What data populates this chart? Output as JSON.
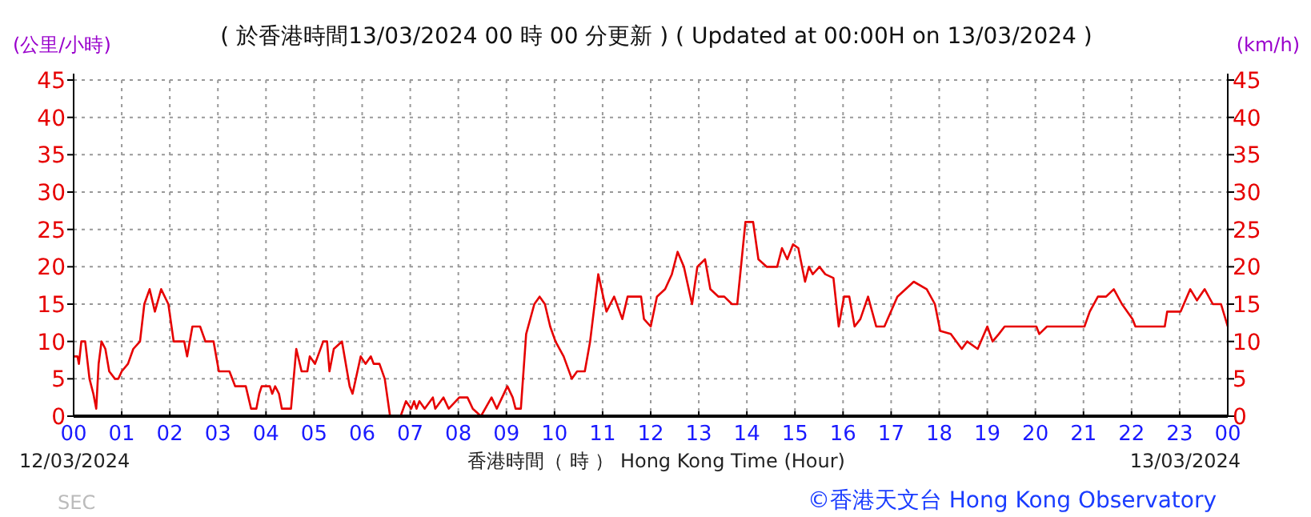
{
  "chart_data": {
    "type": "line",
    "title": "( 於香港時間13/03/2024 00 時 00 分更新 ) ( Updated at 00:00H on 13/03/2024 )",
    "ylabel": "(公里/小時)",
    "y2label": "(km/h)",
    "xlabel": "香港時間（ 時 ） Hong Kong Time (Hour)",
    "annotations": [
      "12/03/2024",
      "13/03/2024",
      "SEC",
      "©香港天文台 Hong Kong Observatory"
    ],
    "x": [
      0,
      0.08,
      0.11,
      0.16,
      0.24,
      0.33,
      0.41,
      0.47,
      0.52,
      0.58,
      0.66,
      0.74,
      0.86,
      0.93,
      1.0,
      1.13,
      1.24,
      1.38,
      1.47,
      1.58,
      1.69,
      1.82,
      1.97,
      2.08,
      2.3,
      2.36,
      2.47,
      2.63,
      2.74,
      2.91,
      3.02,
      3.24,
      3.36,
      3.58,
      3.69,
      3.8,
      3.86,
      3.91,
      4.08,
      4.13,
      4.19,
      4.27,
      4.33,
      4.52,
      4.63,
      4.74,
      4.86,
      4.91,
      5.02,
      5.19,
      5.27,
      5.32,
      5.41,
      5.58,
      5.74,
      5.8,
      5.97,
      6.07,
      6.18,
      6.24,
      6.36,
      6.47,
      6.58,
      6.8,
      6.91,
      7.02,
      7.08,
      7.13,
      7.19,
      7.3,
      7.47,
      7.52,
      7.69,
      7.8,
      8.02,
      8.19,
      8.3,
      8.47,
      8.69,
      8.8,
      8.91,
      9.02,
      9.13,
      9.19,
      9.3,
      9.41,
      9.58,
      9.69,
      9.8,
      9.91,
      10.02,
      10.19,
      10.36,
      10.47,
      10.63,
      10.74,
      10.91,
      11.08,
      11.24,
      11.41,
      11.52,
      11.8,
      11.86,
      12.0,
      12.13,
      12.3,
      12.44,
      12.56,
      12.69,
      12.86,
      12.97,
      13.13,
      13.24,
      13.41,
      13.53,
      13.69,
      13.8,
      13.97,
      14.13,
      14.24,
      14.41,
      14.52,
      14.63,
      14.73,
      14.84,
      14.96,
      15.07,
      15.21,
      15.29,
      15.37,
      15.51,
      15.63,
      15.8,
      15.91,
      16.02,
      16.13,
      16.24,
      16.36,
      16.52,
      16.69,
      16.86,
      17.13,
      17.47,
      17.74,
      17.91,
      18.02,
      18.24,
      18.47,
      18.58,
      18.8,
      19.0,
      19.11,
      19.24,
      19.36,
      20.02,
      20.08,
      20.24,
      20.47,
      21.02,
      21.13,
      21.3,
      21.47,
      21.63,
      21.8,
      22.02,
      22.08,
      22.69,
      22.74,
      23.02,
      23.22,
      23.36,
      23.52,
      23.69,
      23.86,
      24.0
    ],
    "series": [
      {
        "color": "#e60000",
        "values": [
          8,
          8,
          7,
          10,
          10,
          5,
          3,
          1,
          7,
          10,
          9,
          6,
          5,
          5,
          6,
          7,
          9,
          10,
          15,
          17,
          14,
          17,
          15,
          10,
          10,
          8,
          12,
          12,
          10,
          10,
          6,
          6,
          4,
          4,
          1,
          1,
          3,
          4,
          4,
          3,
          4,
          3,
          1,
          1,
          9,
          6,
          6,
          8,
          7,
          10,
          10,
          6,
          9,
          10,
          4,
          3,
          8,
          7,
          8,
          7,
          7,
          5,
          0,
          0,
          2,
          1,
          2,
          1,
          2,
          1,
          2.5,
          1,
          2.5,
          1,
          2.5,
          2.5,
          1,
          0,
          2.5,
          1,
          2.5,
          4,
          2.5,
          1,
          1,
          11,
          15,
          16,
          15,
          12,
          10,
          8,
          5,
          6,
          6,
          10,
          19,
          14,
          16,
          13,
          16,
          16,
          13,
          12,
          16,
          17,
          19,
          22,
          20,
          15,
          20,
          21,
          17,
          16,
          16,
          15,
          15,
          26,
          26,
          21,
          20,
          20,
          20,
          22.5,
          21,
          23,
          22.5,
          18,
          20,
          19,
          20,
          19,
          18.5,
          12,
          16,
          16,
          12,
          13,
          16,
          12,
          12,
          16,
          18,
          17,
          15,
          11.4,
          11,
          9,
          10,
          9,
          12,
          10,
          11,
          12,
          12,
          11,
          12,
          12,
          12,
          14,
          16,
          16,
          17,
          15,
          13,
          12,
          12,
          14,
          14,
          17,
          15.5,
          17,
          15,
          15,
          12
        ]
      }
    ],
    "xlim": [
      0,
      24
    ],
    "xticks": [
      {
        "value": 0,
        "label": "00"
      },
      {
        "value": 1,
        "label": "01"
      },
      {
        "value": 2,
        "label": "02"
      },
      {
        "value": 3,
        "label": "03"
      },
      {
        "value": 4,
        "label": "04"
      },
      {
        "value": 5,
        "label": "05"
      },
      {
        "value": 6,
        "label": "06"
      },
      {
        "value": 7,
        "label": "07"
      },
      {
        "value": 8,
        "label": "08"
      },
      {
        "value": 9,
        "label": "09"
      },
      10,
      11,
      12,
      13,
      14,
      15,
      16,
      17,
      18,
      19,
      20,
      21,
      22,
      23,
      {
        "value": 24,
        "label": "00"
      }
    ],
    "ylim": [
      0,
      45
    ],
    "yticks": [
      0,
      5,
      10,
      15,
      20,
      25,
      30,
      35,
      40,
      45
    ],
    "y2lim": [
      0,
      45
    ],
    "y2ticks": [
      0,
      5,
      10,
      15,
      20,
      25,
      30,
      35,
      40,
      45
    ],
    "grid": true,
    "marker": "none",
    "line_style": "solid"
  }
}
